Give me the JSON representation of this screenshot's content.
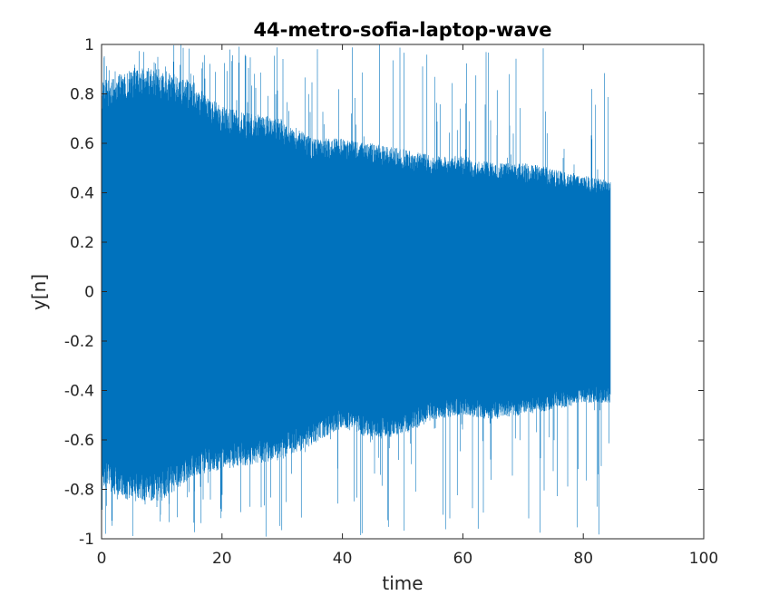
{
  "chart_data": {
    "type": "line",
    "title": "44-metro-sofia-laptop-wave",
    "xlabel": "time",
    "ylabel": "y[n]",
    "xlim": [
      0,
      100
    ],
    "ylim": [
      -1,
      1
    ],
    "xticks": [
      "0",
      "20",
      "40",
      "60",
      "80",
      "100"
    ],
    "yticks": [
      "1",
      "0.8",
      "0.6",
      "0.4",
      "0.2",
      "0",
      "-0.2",
      "-0.4",
      "-0.6",
      "-0.8",
      "-1"
    ],
    "grid": false,
    "signal_end_time": 84.5,
    "series": [
      {
        "color": "#0072BD",
        "envelope_upper": [
          [
            0,
            0.85
          ],
          [
            5,
            0.9
          ],
          [
            10,
            0.9
          ],
          [
            15,
            0.85
          ],
          [
            20,
            0.75
          ],
          [
            25,
            0.72
          ],
          [
            30,
            0.7
          ],
          [
            35,
            0.62
          ],
          [
            40,
            0.62
          ],
          [
            45,
            0.6
          ],
          [
            50,
            0.58
          ],
          [
            55,
            0.55
          ],
          [
            60,
            0.55
          ],
          [
            65,
            0.52
          ],
          [
            70,
            0.52
          ],
          [
            75,
            0.5
          ],
          [
            80,
            0.47
          ],
          [
            84.5,
            0.45
          ]
        ],
        "envelope_lower": [
          [
            0,
            -0.8
          ],
          [
            5,
            -0.85
          ],
          [
            10,
            -0.85
          ],
          [
            15,
            -0.75
          ],
          [
            20,
            -0.72
          ],
          [
            25,
            -0.7
          ],
          [
            30,
            -0.68
          ],
          [
            35,
            -0.62
          ],
          [
            40,
            -0.55
          ],
          [
            45,
            -0.6
          ],
          [
            50,
            -0.58
          ],
          [
            55,
            -0.52
          ],
          [
            60,
            -0.5
          ],
          [
            65,
            -0.52
          ],
          [
            70,
            -0.5
          ],
          [
            75,
            -0.48
          ],
          [
            80,
            -0.45
          ],
          [
            84.5,
            -0.45
          ]
        ]
      }
    ]
  }
}
